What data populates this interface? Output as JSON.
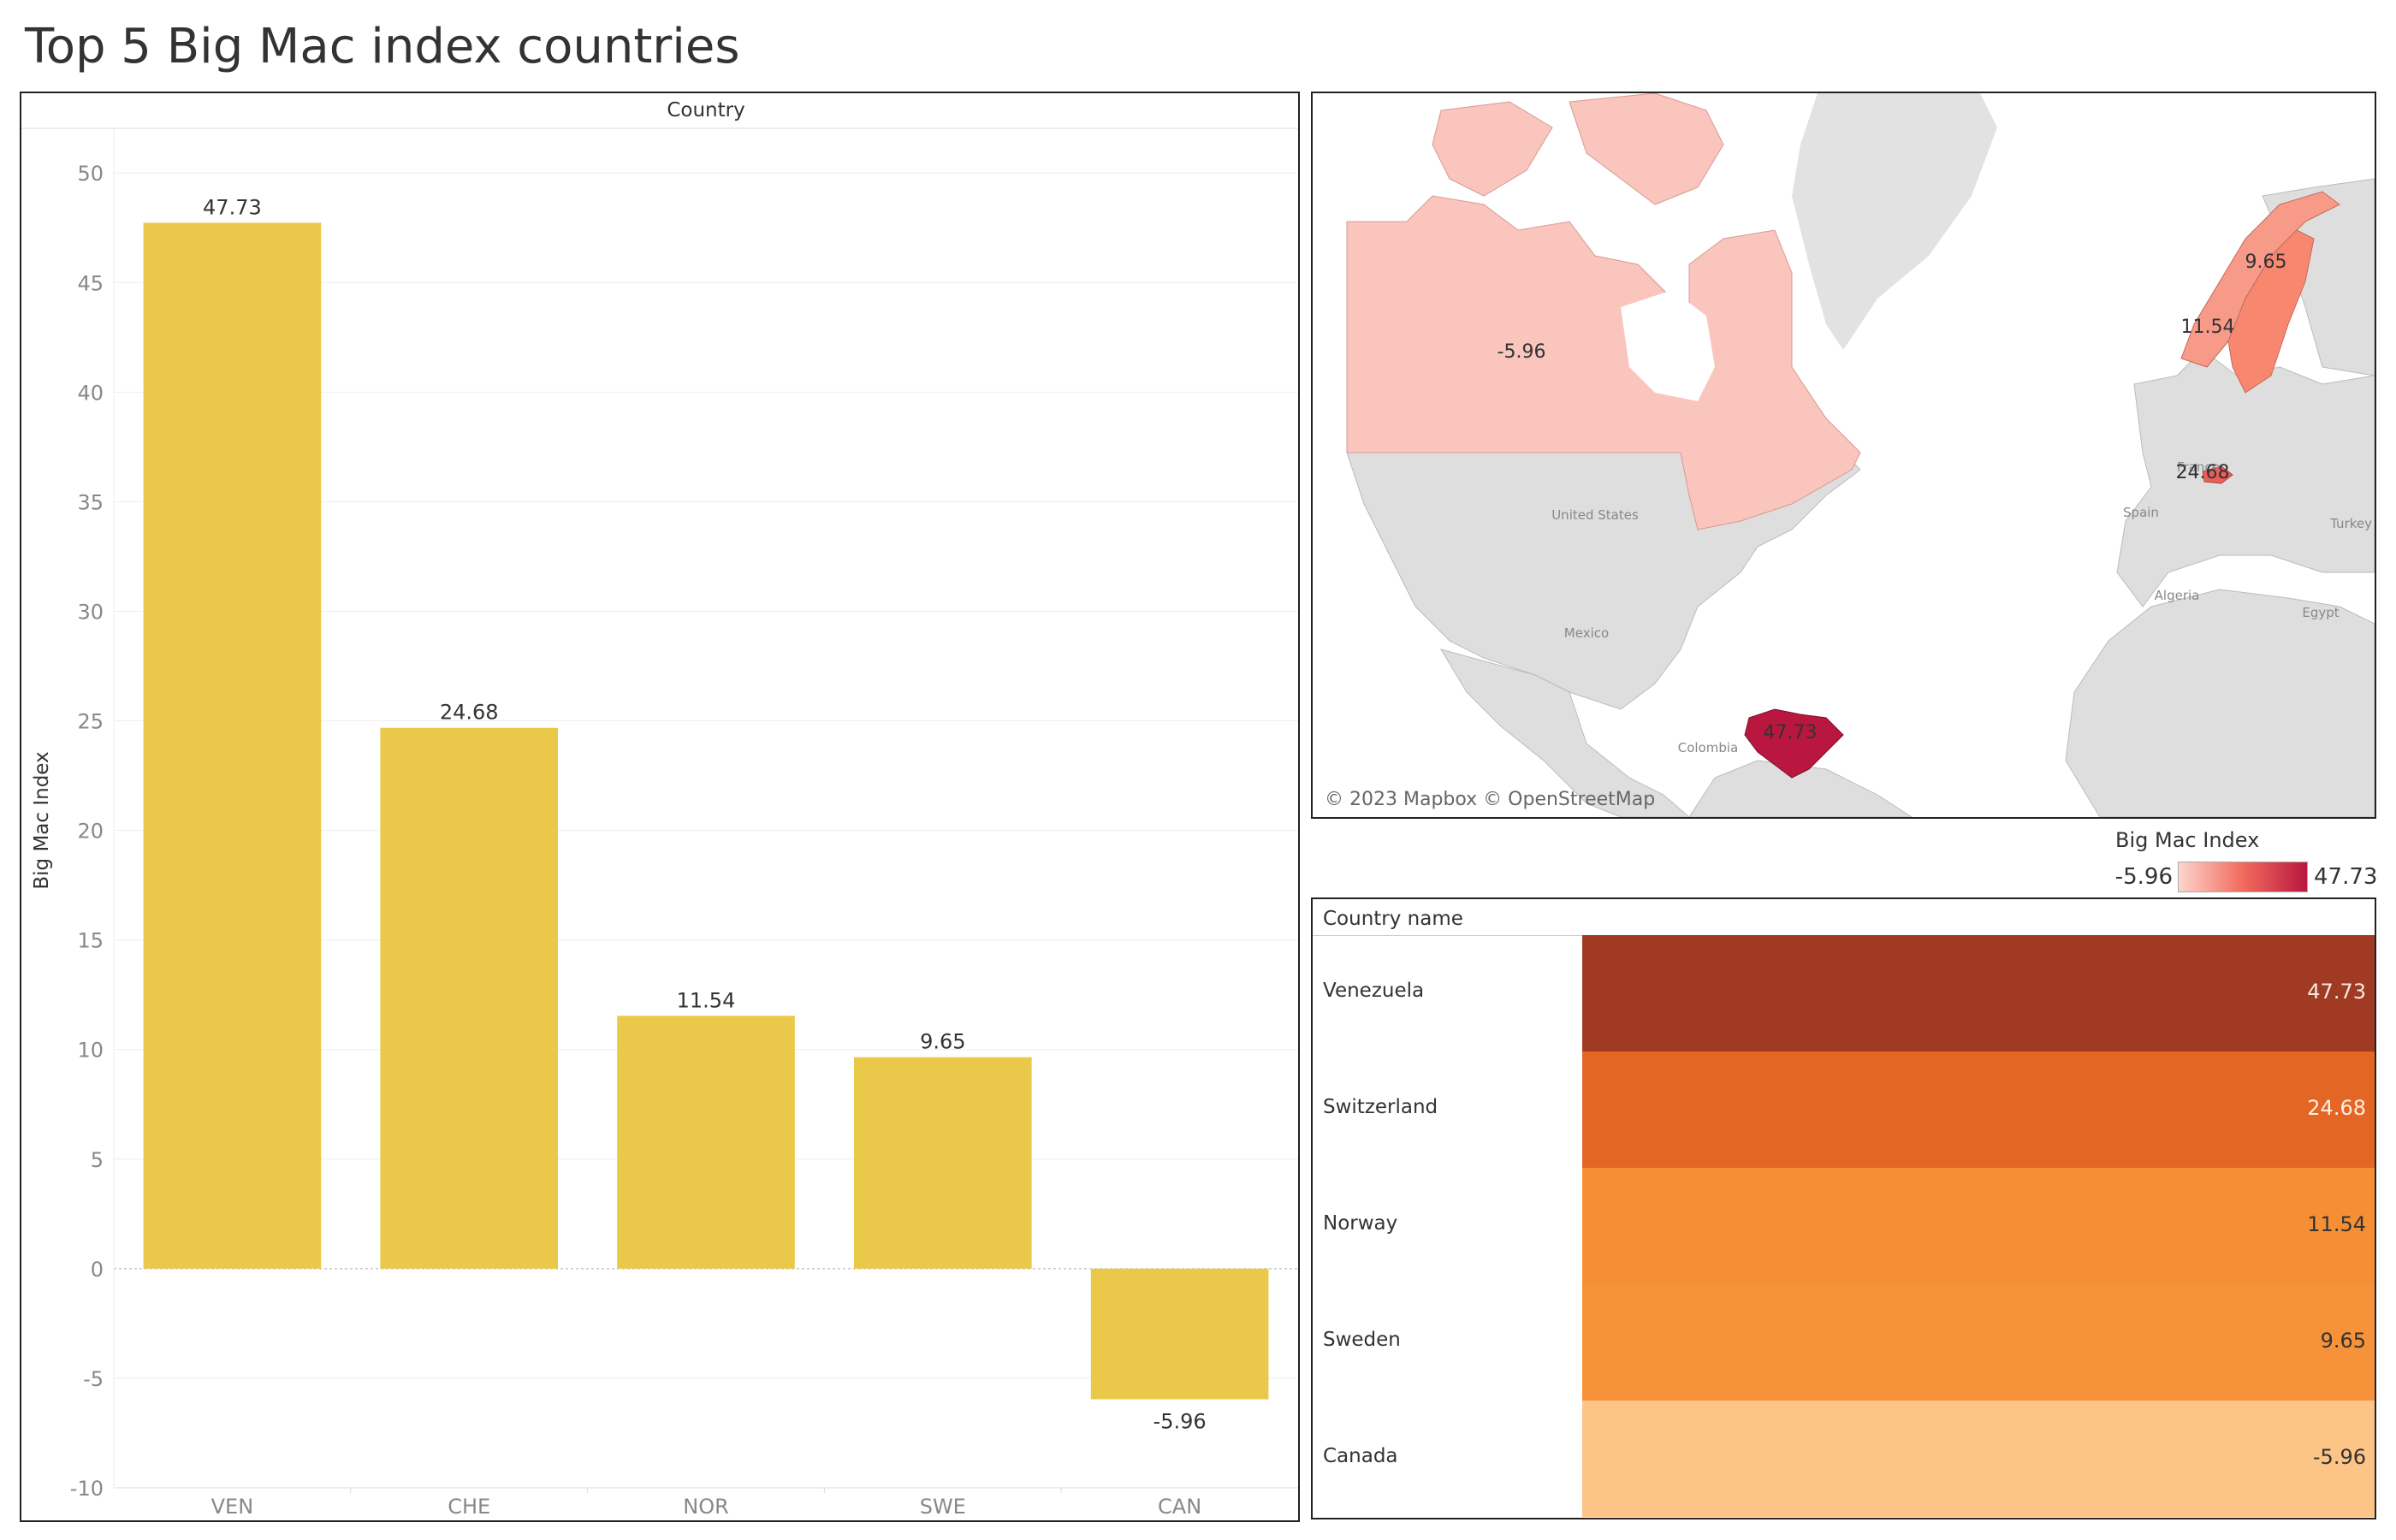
{
  "title": "Top 5 Big Mac index countries",
  "colors": {
    "bar": "#EAC84A",
    "map_low": "#FCD5CE",
    "map_high": "#B9173F",
    "table": [
      "#A03A22",
      "#E36624",
      "#F58F35",
      "#F5923A",
      "#FDC488"
    ]
  },
  "chart_data": {
    "type": "bar",
    "title": "",
    "column_header": "Country",
    "xlabel": "",
    "ylabel": "Big Mac Index",
    "categories": [
      "VEN",
      "CHE",
      "NOR",
      "SWE",
      "CAN"
    ],
    "values": [
      47.73,
      24.68,
      11.54,
      9.65,
      -5.96
    ],
    "data_labels": [
      "47.73",
      "24.68",
      "11.54",
      "9.65",
      "-5.96"
    ],
    "ylim": [
      -10,
      52
    ],
    "yticks": [
      50,
      45,
      40,
      35,
      30,
      25,
      20,
      15,
      10,
      5,
      0,
      -5,
      -10
    ],
    "grid": true
  },
  "map": {
    "attribution": "© 2023 Mapbox © OpenStreetMap",
    "place_labels": [
      "United States",
      "Mexico",
      "Colombia",
      "Spain",
      "France",
      "Algeria",
      "Egypt",
      "Turkey"
    ],
    "value_labels": [
      {
        "country": "Canada",
        "text": "-5.96"
      },
      {
        "country": "Norway",
        "text": "11.54"
      },
      {
        "country": "Sweden",
        "text": "9.65"
      },
      {
        "country": "Switzerland",
        "text": "24.68"
      },
      {
        "country": "Venezuela",
        "text": "47.73"
      }
    ]
  },
  "legend": {
    "title": "Big Mac Index",
    "min": "-5.96",
    "max": "47.73"
  },
  "table": {
    "header": "Country name",
    "rows": [
      {
        "name": "Venezuela",
        "value": "47.73"
      },
      {
        "name": "Switzerland",
        "value": "24.68"
      },
      {
        "name": "Norway",
        "value": "11.54"
      },
      {
        "name": "Sweden",
        "value": "9.65"
      },
      {
        "name": "Canada",
        "value": "-5.96"
      }
    ]
  }
}
